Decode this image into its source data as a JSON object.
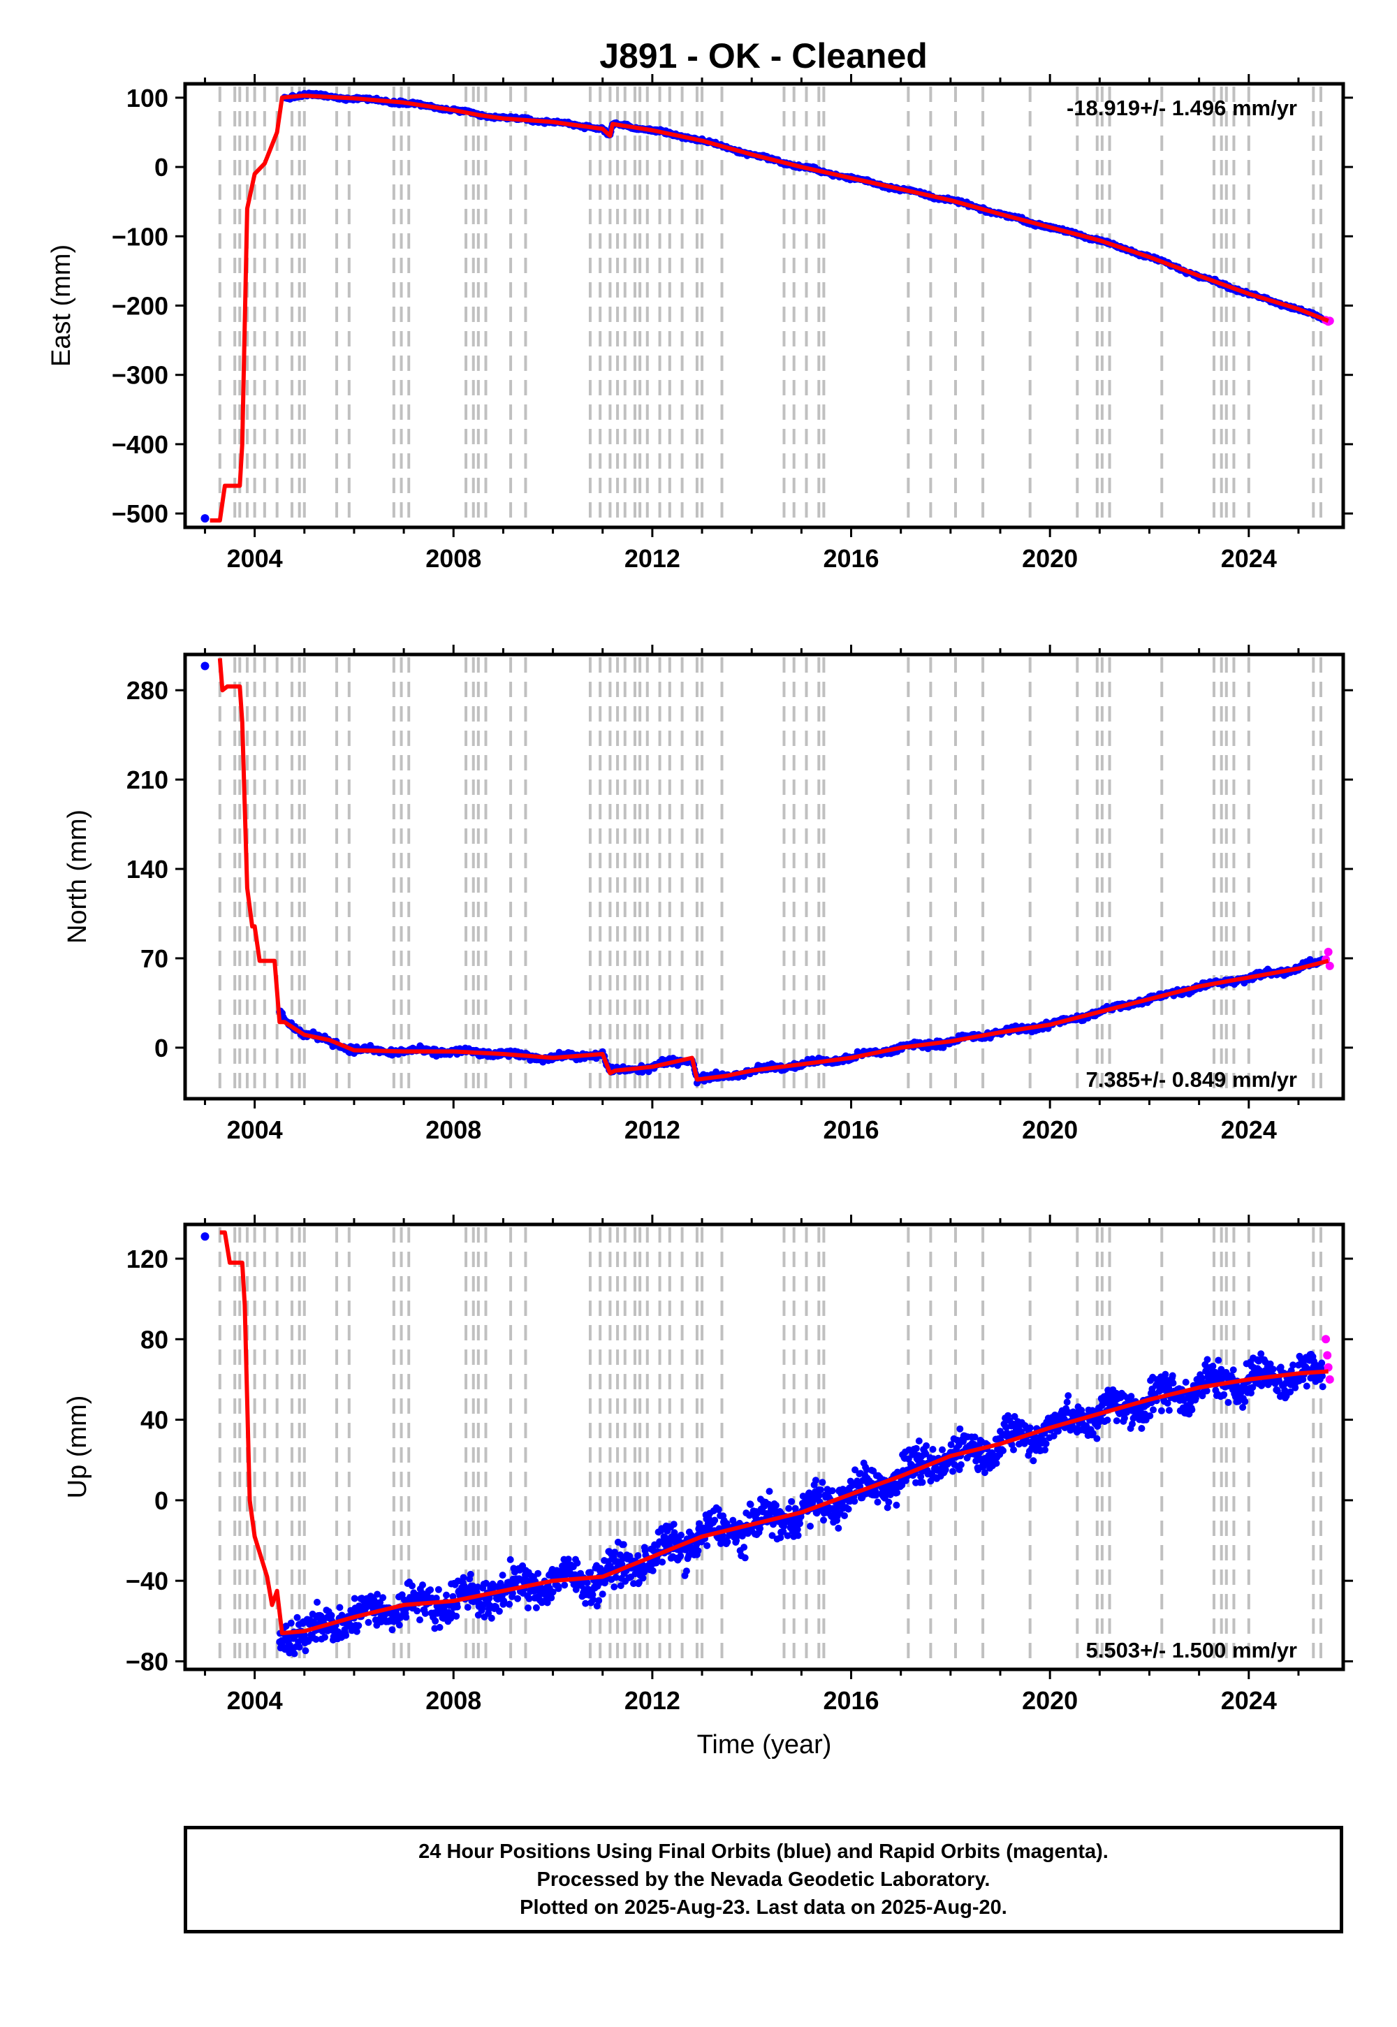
{
  "title": "J891  - OK - Cleaned",
  "colors": {
    "final_orbits": "#0000ff",
    "rapid_orbits": "#ff00ff",
    "model": "#ff0000",
    "event_lines": "#c0c0c0"
  },
  "chart_data": [
    {
      "type": "scatter",
      "ylabel": "East (mm)",
      "xlabel": "",
      "xlim": [
        2002.6,
        2025.9
      ],
      "ylim": [
        -520,
        120
      ],
      "yticks": [
        100,
        0,
        -100,
        -200,
        -300,
        -400,
        -500
      ],
      "xticks": [
        2004,
        2008,
        2012,
        2016,
        2020,
        2024
      ],
      "rate_label": "-18.919+/- 1.496 mm/yr",
      "rate_position": "top-right",
      "series": [
        {
          "name": "Final Orbits (blue)",
          "x": [
            2003.0,
            2004.6,
            2005.0,
            2006.0,
            2007.0,
            2008.0,
            2008.5,
            2009.0,
            2010.0,
            2011.0,
            2011.15,
            2011.2,
            2012.0,
            2013.0,
            2014.0,
            2015.0,
            2016.0,
            2017.0,
            2018.0,
            2019.0,
            2020.0,
            2021.0,
            2022.0,
            2023.0,
            2024.0,
            2025.0,
            2025.5
          ],
          "y": [
            -507,
            100,
            104,
            99,
            93,
            82,
            75,
            71,
            65,
            55,
            45,
            62,
            53,
            38,
            18,
            0,
            -16,
            -32,
            -48,
            -68,
            -87,
            -106,
            -130,
            -157,
            -183,
            -205,
            -220
          ]
        },
        {
          "name": "Rapid Orbits (magenta)",
          "x": [
            2025.55,
            2025.6,
            2025.63
          ],
          "y": [
            -221,
            -223,
            -222
          ]
        },
        {
          "name": "Model",
          "x": [
            2003.1,
            2003.3,
            2003.4,
            2003.7,
            2003.75,
            2003.85,
            2004.0,
            2004.2,
            2004.45,
            2004.55,
            2005.0,
            2006.0,
            2007.0,
            2008.0,
            2008.5,
            2009.0,
            2010.0,
            2011.0,
            2011.15,
            2011.2,
            2012.0,
            2013.0,
            2014.0,
            2015.0,
            2016.0,
            2017.0,
            2018.0,
            2019.0,
            2020.0,
            2021.0,
            2022.0,
            2023.0,
            2024.0,
            2025.0,
            2025.6
          ],
          "y": [
            -510,
            -510,
            -460,
            -460,
            -400,
            -60,
            -10,
            5,
            50,
            100,
            103,
            99,
            93,
            82,
            75,
            70,
            65,
            55,
            45,
            62,
            53,
            38,
            18,
            0,
            -16,
            -32,
            -48,
            -68,
            -87,
            -106,
            -130,
            -157,
            -183,
            -205,
            -222
          ]
        }
      ],
      "event_lines_x": [
        2003.3,
        2003.6,
        2003.7,
        2003.85,
        2004.0,
        2004.2,
        2004.45,
        2004.75,
        2004.9,
        2005.0,
        2005.65,
        2005.9,
        2006.8,
        2006.95,
        2007.1,
        2008.25,
        2008.4,
        2008.5,
        2008.65,
        2009.15,
        2009.45,
        2010.75,
        2010.95,
        2011.15,
        2011.3,
        2011.45,
        2011.65,
        2011.75,
        2011.9,
        2012.15,
        2012.35,
        2012.6,
        2012.9,
        2013.0,
        2013.4,
        2014.65,
        2014.85,
        2015.1,
        2015.35,
        2015.45,
        2017.15,
        2017.6,
        2018.1,
        2018.65,
        2019.6,
        2020.55,
        2020.95,
        2021.05,
        2021.2,
        2022.25,
        2023.3,
        2023.45,
        2023.55,
        2023.7,
        2024.0,
        2025.3,
        2025.45
      ]
    },
    {
      "type": "scatter",
      "ylabel": "North (mm)",
      "xlabel": "",
      "xlim": [
        2002.6,
        2025.9
      ],
      "ylim": [
        -40,
        308
      ],
      "yticks": [
        280,
        210,
        140,
        70,
        0
      ],
      "xticks": [
        2004,
        2008,
        2012,
        2016,
        2020,
        2024
      ],
      "rate_label": "7.385+/- 0.849 mm/yr",
      "rate_position": "bottom-right",
      "series": [
        {
          "name": "Final Orbits (blue)",
          "x": [
            2003.0,
            2004.5,
            2004.7,
            2005.0,
            2005.5,
            2006.0,
            2007.0,
            2008.0,
            2009.0,
            2010.0,
            2011.0,
            2011.15,
            2011.25,
            2012.0,
            2012.8,
            2012.9,
            2013.5,
            2014.0,
            2015.0,
            2016.0,
            2017.0,
            2018.0,
            2019.0,
            2020.0,
            2021.0,
            2022.0,
            2023.0,
            2024.0,
            2025.0,
            2025.5
          ],
          "y": [
            299,
            28,
            20,
            10,
            6,
            -2,
            -3,
            -3,
            -5,
            -8,
            -5,
            -20,
            -18,
            -15,
            -8,
            -25,
            -22,
            -18,
            -13,
            -8,
            0,
            5,
            12,
            18,
            28,
            38,
            48,
            55,
            62,
            68
          ]
        },
        {
          "name": "Rapid Orbits (magenta)",
          "x": [
            2025.55,
            2025.6,
            2025.63
          ],
          "y": [
            69,
            75,
            64
          ]
        },
        {
          "name": "Model",
          "x": [
            2003.3,
            2003.35,
            2003.45,
            2003.7,
            2003.75,
            2003.85,
            2003.95,
            2004.0,
            2004.1,
            2004.4,
            2004.5,
            2004.6,
            2005.0,
            2005.5,
            2006.0,
            2007.0,
            2008.0,
            2009.0,
            2010.0,
            2011.0,
            2011.15,
            2011.25,
            2012.0,
            2012.8,
            2012.9,
            2013.5,
            2014.0,
            2015.0,
            2016.0,
            2017.0,
            2018.0,
            2019.0,
            2020.0,
            2021.0,
            2022.0,
            2023.0,
            2024.0,
            2025.0,
            2025.6
          ],
          "y": [
            305,
            280,
            283,
            283,
            255,
            125,
            95,
            95,
            68,
            68,
            20,
            20,
            10,
            6,
            -2,
            -3,
            -3,
            -5,
            -8,
            -5,
            -20,
            -18,
            -15,
            -8,
            -25,
            -22,
            -18,
            -13,
            -8,
            0,
            5,
            12,
            18,
            28,
            38,
            48,
            55,
            62,
            68
          ]
        }
      ],
      "event_lines_x": [
        2003.3,
        2003.6,
        2003.7,
        2003.85,
        2004.0,
        2004.2,
        2004.45,
        2004.75,
        2004.9,
        2005.0,
        2005.65,
        2005.9,
        2006.8,
        2006.95,
        2007.1,
        2008.25,
        2008.4,
        2008.5,
        2008.65,
        2009.15,
        2009.45,
        2010.75,
        2010.95,
        2011.15,
        2011.3,
        2011.45,
        2011.65,
        2011.75,
        2011.9,
        2012.15,
        2012.35,
        2012.6,
        2012.9,
        2013.0,
        2013.4,
        2014.65,
        2014.85,
        2015.1,
        2015.35,
        2015.45,
        2017.15,
        2017.6,
        2018.1,
        2018.65,
        2019.6,
        2020.55,
        2020.95,
        2021.05,
        2021.2,
        2022.25,
        2023.3,
        2023.45,
        2023.55,
        2023.7,
        2024.0,
        2025.3,
        2025.45
      ]
    },
    {
      "type": "scatter",
      "ylabel": "Up (mm)",
      "xlabel": "Time (year)",
      "xlim": [
        2002.6,
        2025.9
      ],
      "ylim": [
        -84,
        137
      ],
      "yticks": [
        120,
        80,
        40,
        0,
        -40,
        -80
      ],
      "xticks": [
        2004,
        2008,
        2012,
        2016,
        2020,
        2024
      ],
      "rate_label": "5.503+/- 1.500 mm/yr",
      "rate_position": "bottom-right",
      "series": [
        {
          "name": "Final Orbits (blue)",
          "x": [
            2003.0,
            2004.5,
            2005.0,
            2006.0,
            2007.0,
            2008.0,
            2009.0,
            2010.0,
            2011.0,
            2012.0,
            2013.0,
            2014.0,
            2015.0,
            2016.0,
            2017.0,
            2018.0,
            2019.0,
            2020.0,
            2021.0,
            2022.0,
            2023.0,
            2024.0,
            2025.0,
            2025.5
          ],
          "y": [
            131,
            -68,
            -65,
            -58,
            -52,
            -50,
            -45,
            -40,
            -38,
            -28,
            -18,
            -12,
            -6,
            3,
            12,
            22,
            28,
            36,
            43,
            50,
            56,
            60,
            63,
            64
          ]
        },
        {
          "name": "Rapid Orbits (magenta)",
          "x": [
            2025.55,
            2025.58,
            2025.6,
            2025.63
          ],
          "y": [
            80,
            72,
            66,
            60
          ]
        },
        {
          "name": "Model",
          "x": [
            2003.3,
            2003.4,
            2003.5,
            2003.75,
            2003.8,
            2003.9,
            2004.0,
            2004.25,
            2004.35,
            2004.45,
            2004.55,
            2005.0,
            2006.0,
            2007.0,
            2008.0,
            2009.0,
            2010.0,
            2011.0,
            2012.0,
            2013.0,
            2014.0,
            2015.0,
            2016.0,
            2017.0,
            2018.0,
            2019.0,
            2020.0,
            2021.0,
            2022.0,
            2023.0,
            2024.0,
            2025.0,
            2025.6
          ],
          "y": [
            133,
            133,
            118,
            118,
            97,
            0,
            -18,
            -38,
            -52,
            -45,
            -66,
            -65,
            -58,
            -52,
            -50,
            -45,
            -40,
            -38,
            -28,
            -18,
            -12,
            -6,
            3,
            12,
            22,
            28,
            36,
            43,
            50,
            56,
            60,
            63,
            64
          ]
        }
      ],
      "event_lines_x": [
        2003.3,
        2003.6,
        2003.7,
        2003.85,
        2004.0,
        2004.2,
        2004.45,
        2004.75,
        2004.9,
        2005.0,
        2005.65,
        2005.9,
        2006.8,
        2006.95,
        2007.1,
        2008.25,
        2008.4,
        2008.5,
        2008.65,
        2009.15,
        2009.45,
        2010.75,
        2010.95,
        2011.15,
        2011.3,
        2011.45,
        2011.65,
        2011.75,
        2011.9,
        2012.15,
        2012.35,
        2012.6,
        2012.9,
        2013.0,
        2013.4,
        2014.65,
        2014.85,
        2015.1,
        2015.35,
        2015.45,
        2017.15,
        2017.6,
        2018.1,
        2018.65,
        2019.6,
        2020.55,
        2020.95,
        2021.05,
        2021.2,
        2022.25,
        2023.3,
        2023.45,
        2023.55,
        2023.7,
        2024.0,
        2025.3,
        2025.45
      ]
    }
  ],
  "caption": {
    "line1": "24 Hour Positions Using Final Orbits (blue) and Rapid Orbits (magenta).",
    "line2": "Processed by the Nevada Geodetic Laboratory.",
    "line3": "Plotted on 2025-Aug-23. Last data on 2025-Aug-20."
  }
}
